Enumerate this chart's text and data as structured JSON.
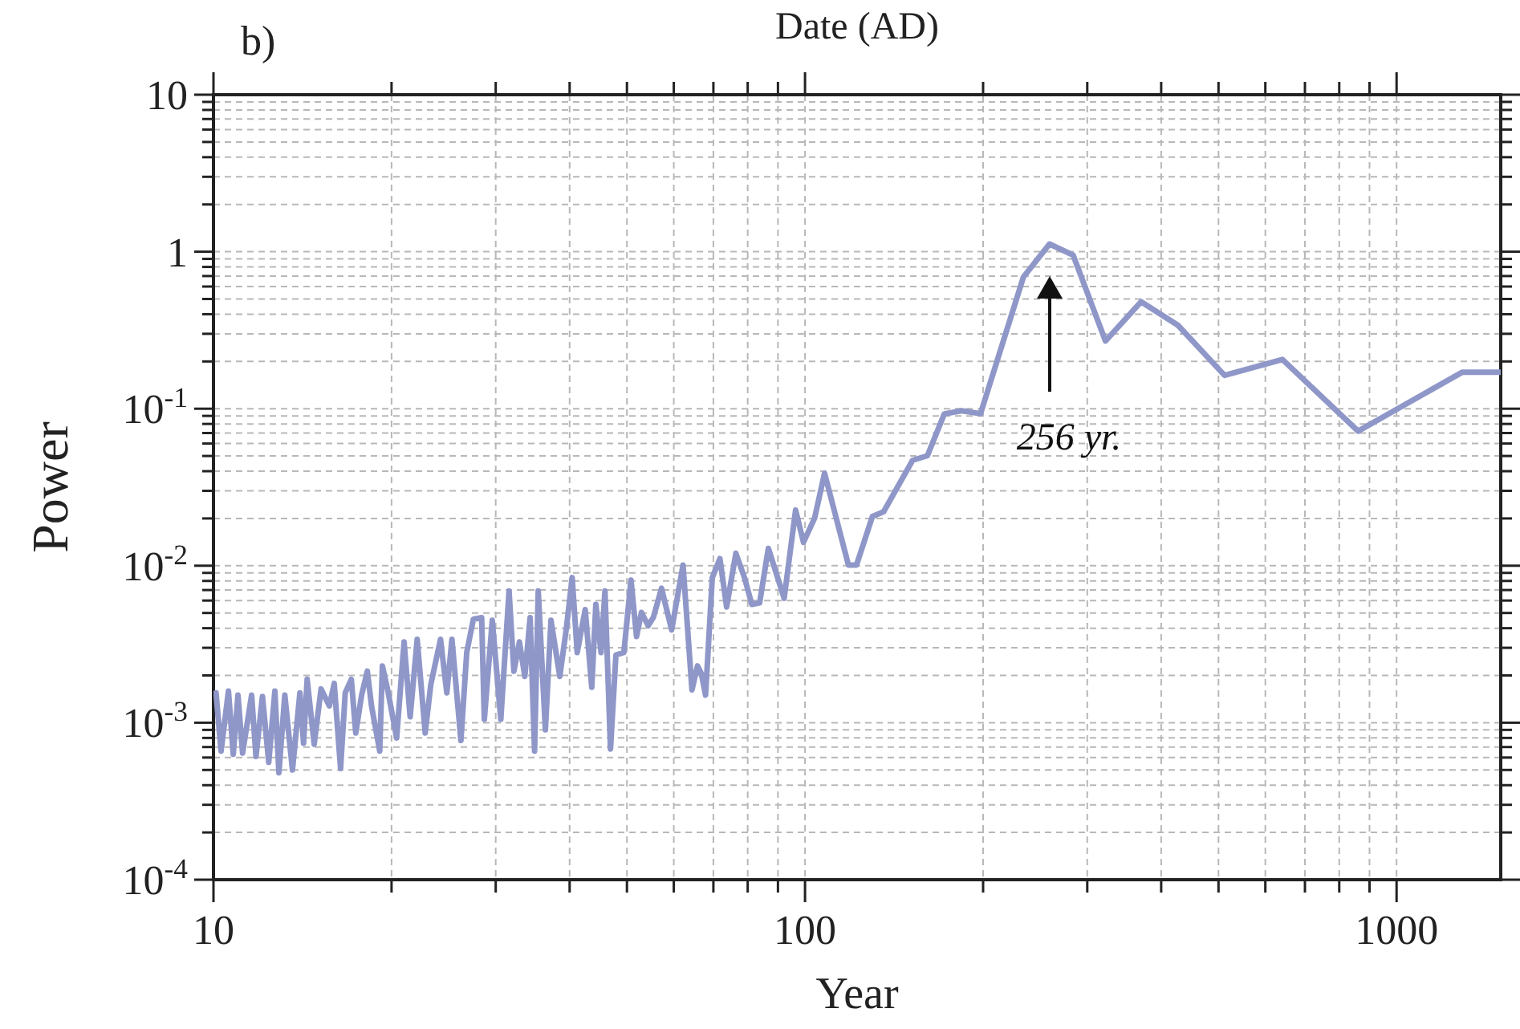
{
  "chart_data": {
    "type": "line",
    "xlabel": "Year",
    "ylabel": "Power",
    "x2label": "Date (AD)",
    "log": "xy",
    "grid": true,
    "xlim": [
      10,
      1500
    ],
    "xticks": [
      10,
      100,
      1000
    ],
    "ylim": [
      0.0001,
      10
    ],
    "yticks": [
      10,
      1,
      {
        "value": 0.1,
        "label": "10$^{-1}$"
      },
      {
        "value": 0.01,
        "label": "10$^{-2}$"
      },
      {
        "value": 0.001,
        "label": "10$^{-3}$"
      },
      {
        "value": 0.0001,
        "label": "10$^{-4}$"
      }
    ],
    "annotations": [
      "b)",
      "256 yr."
    ],
    "series": [
      {
        "color": "#8f97c9",
        "x": [
          10.1,
          10.3,
          10.6,
          10.8,
          11.0,
          11.2,
          11.6,
          11.8,
          12.1,
          12.4,
          12.7,
          12.9,
          13.2,
          13.6,
          14.0,
          14.2,
          14.4,
          14.8,
          15.2,
          15.7,
          16.0,
          16.4,
          16.7,
          17.1,
          17.4,
          17.8,
          18.2,
          18.5,
          19.1,
          19.3,
          19.7,
          20.4,
          21.0,
          21.5,
          22.1,
          22.8,
          23.3,
          24.2,
          24.8,
          25.3,
          26.2,
          26.8,
          27.5,
          28.4,
          28.7,
          29.6,
          30.6,
          31.6,
          32.2,
          32.9,
          33.6,
          34.3,
          34.9,
          35.4,
          36.4,
          37.2,
          38.5,
          39.5,
          40.4,
          41.2,
          42.5,
          43.6,
          44.3,
          45.2,
          45.9,
          46.9,
          47.9,
          49.4,
          50.8,
          51.9,
          52.9,
          54.3,
          55.4,
          57.2,
          59.5,
          62.2,
          64.4,
          65.8,
          66.8,
          67.9,
          69.7,
          71.8,
          73.7,
          76.4,
          79.0,
          81.3,
          83.8,
          86.7,
          92.2,
          96.4,
          99.4,
          103.8,
          107.9,
          118.4,
          122.2,
          130,
          135.8,
          152,
          161,
          172,
          184,
          198,
          234,
          259,
          284,
          322,
          370,
          427,
          512,
          641,
          861,
          1292,
          1500
        ],
        "values": [
          0.00155,
          0.00066,
          0.00159,
          0.00063,
          0.0015,
          0.00064,
          0.0015,
          0.00061,
          0.00147,
          0.00056,
          0.00159,
          0.00048,
          0.0015,
          0.0005,
          0.00155,
          0.00074,
          0.00189,
          0.00073,
          0.00164,
          0.00128,
          0.00178,
          0.00051,
          0.00155,
          0.00189,
          0.00086,
          0.0015,
          0.00213,
          0.00128,
          0.00066,
          0.0023,
          0.00162,
          0.0008,
          0.00327,
          0.00109,
          0.0034,
          0.00086,
          0.00175,
          0.0034,
          0.00155,
          0.0034,
          0.00077,
          0.0028,
          0.00456,
          0.00467,
          0.00105,
          0.00449,
          0.00105,
          0.0069,
          0.00213,
          0.00327,
          0.00197,
          0.00467,
          0.00066,
          0.0069,
          0.0009,
          0.00449,
          0.00197,
          0.004,
          0.0084,
          0.0028,
          0.00525,
          0.00168,
          0.00567,
          0.0028,
          0.0069,
          0.00068,
          0.0027,
          0.0028,
          0.0081,
          0.00354,
          0.00504,
          0.00415,
          0.00467,
          0.00718,
          0.0039,
          0.0101,
          0.00162,
          0.0023,
          0.00205,
          0.0015,
          0.0084,
          0.0111,
          0.00546,
          0.012,
          0.0084,
          0.00567,
          0.0058,
          0.0129,
          0.0062,
          0.0226,
          0.0141,
          0.0201,
          0.0388,
          0.0101,
          0.0101,
          0.0206,
          0.0221,
          0.0469,
          0.0502,
          0.0927,
          0.097,
          0.093,
          0.69,
          1.12,
          0.95,
          0.27,
          0.48,
          0.34,
          0.163,
          0.206,
          0.072,
          0.171,
          0.171
        ]
      }
    ]
  }
}
